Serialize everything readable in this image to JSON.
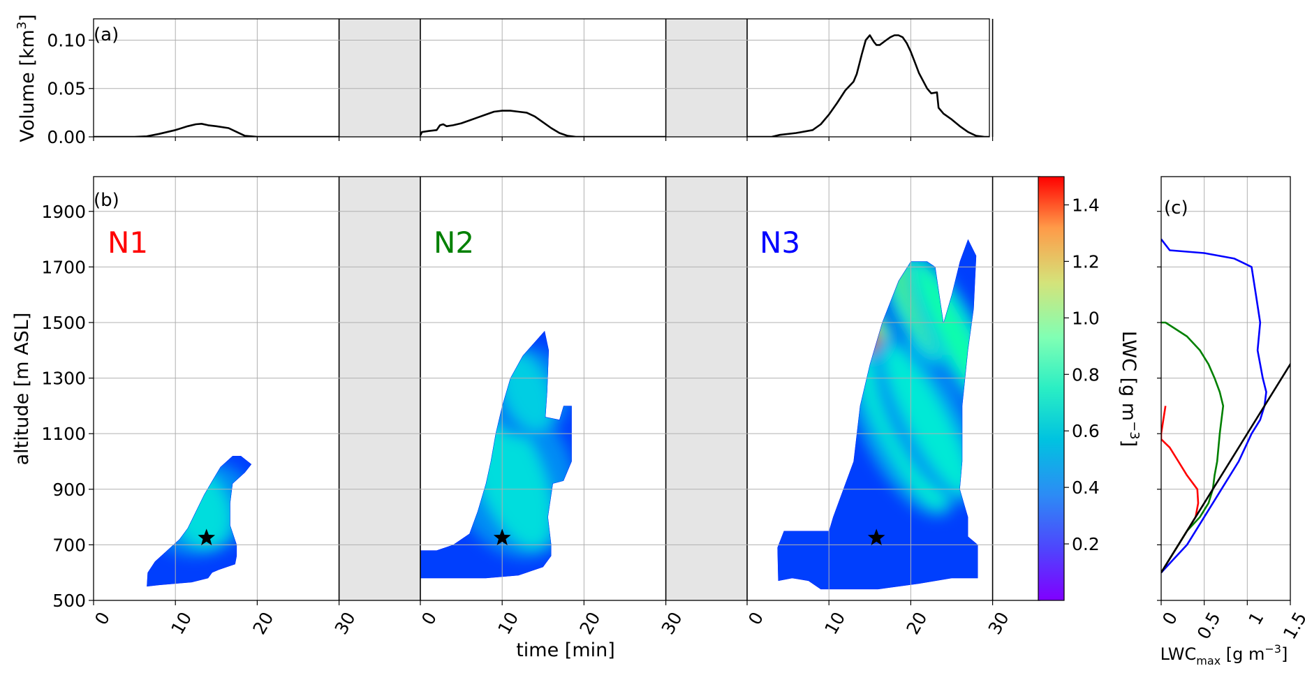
{
  "chart_data": [
    {
      "panel": "(a)",
      "type": "line",
      "ylabel_main": "Volume [km",
      "ylabel_sup": "3",
      "ylabel_end": "]",
      "ylim": [
        0,
        0.122
      ],
      "yticks": [
        "0.00",
        "0.05",
        "0.10"
      ],
      "grid": true,
      "segments": [
        {
          "x": [
            0,
            5,
            6.5,
            8,
            10,
            11.5,
            12.5,
            13.2,
            14,
            15,
            16.5,
            17.5,
            18.5,
            20,
            25,
            30
          ],
          "y": [
            0,
            0,
            0.0005,
            0.003,
            0.007,
            0.011,
            0.013,
            0.0135,
            0.012,
            0.011,
            0.009,
            0.005,
            0.001,
            0,
            0,
            0
          ]
        },
        {
          "x": [
            0,
            0.2,
            1,
            2,
            2.4,
            2.8,
            3.2,
            4,
            5,
            6,
            7,
            8,
            9,
            10,
            11,
            12,
            13,
            14,
            15,
            16,
            17,
            18,
            19,
            20,
            30
          ],
          "y": [
            0.0015,
            0.005,
            0.006,
            0.007,
            0.012,
            0.013,
            0.011,
            0.012,
            0.014,
            0.017,
            0.02,
            0.023,
            0.026,
            0.027,
            0.027,
            0.026,
            0.025,
            0.021,
            0.015,
            0.009,
            0.004,
            0.001,
            0,
            0,
            0
          ]
        },
        {
          "x": [
            0,
            3,
            4,
            6,
            8,
            9,
            10,
            11,
            12,
            13,
            13.4,
            13.7,
            14,
            14.5,
            15,
            15.5,
            15.8,
            16.2,
            17,
            17.5,
            18,
            18.5,
            19,
            19.5,
            20,
            20.5,
            21,
            22,
            22.5,
            23.2,
            23.4,
            24,
            25,
            26,
            27,
            28,
            29,
            30
          ],
          "y": [
            0,
            0,
            0.002,
            0.004,
            0.007,
            0.013,
            0.023,
            0.035,
            0.048,
            0.057,
            0.065,
            0.075,
            0.085,
            0.1,
            0.105,
            0.098,
            0.095,
            0.095,
            0.1,
            0.103,
            0.105,
            0.105,
            0.103,
            0.097,
            0.088,
            0.077,
            0.066,
            0.05,
            0.045,
            0.046,
            0.03,
            0.024,
            0.018,
            0.011,
            0.005,
            0.001,
            0,
            0
          ]
        }
      ]
    },
    {
      "panel": "(b)",
      "type": "heatmap",
      "xlabel": "time [min]",
      "ylabel": "altitude [m ASL]",
      "xticks": [
        "0",
        "10",
        "20",
        "30"
      ],
      "yticks": [
        "500",
        "700",
        "900",
        "1100",
        "1300",
        "1500",
        "1700",
        "1900"
      ],
      "ylim": [
        500,
        2025
      ],
      "grid": true,
      "colorbar": {
        "label_main": "LWC [g m",
        "label_sup": "−3",
        "label_end": "]",
        "ticks": [
          "0.2",
          "0.4",
          "0.6",
          "0.8",
          "1.0",
          "1.2",
          "1.4"
        ],
        "tick_values": [
          0.2,
          0.4,
          0.6,
          0.8,
          1.0,
          1.2,
          1.4
        ],
        "range": [
          0,
          1.5
        ]
      },
      "cells": [
        {
          "name": "N1",
          "color": "#ff0000",
          "star": [
            13.8,
            725
          ],
          "outline": [
            [
              6.5,
              550
            ],
            [
              6.6,
              600
            ],
            [
              7.5,
              640
            ],
            [
              9,
              680
            ],
            [
              10.5,
              720
            ],
            [
              11.5,
              760
            ],
            [
              12.5,
              820
            ],
            [
              13.5,
              880
            ],
            [
              14.5,
              930
            ],
            [
              15.5,
              980
            ],
            [
              17,
              1020
            ],
            [
              18,
              1020
            ],
            [
              19.3,
              990
            ],
            [
              18.5,
              960
            ],
            [
              17,
              920
            ],
            [
              16.7,
              850
            ],
            [
              16.7,
              770
            ],
            [
              17.5,
              700
            ],
            [
              17.5,
              660
            ],
            [
              17.3,
              630
            ],
            [
              16.3,
              620
            ],
            [
              15.3,
              610
            ],
            [
              14.5,
              600
            ],
            [
              14,
              580
            ],
            [
              12,
              565
            ],
            [
              10,
              560
            ],
            [
              8,
              555
            ]
          ],
          "cores": [
            {
              "t": 13,
              "z": 830,
              "rt": 2.2,
              "rz": 150,
              "c": 0.5
            }
          ]
        },
        {
          "name": "N2",
          "color": "#008000",
          "star": [
            10,
            725
          ],
          "outline": [
            [
              0,
              580
            ],
            [
              0,
              680
            ],
            [
              2,
              680
            ],
            [
              4,
              700
            ],
            [
              6,
              740
            ],
            [
              7,
              820
            ],
            [
              8,
              920
            ],
            [
              8.6,
              1000
            ],
            [
              9.2,
              1100
            ],
            [
              10,
              1200
            ],
            [
              11,
              1300
            ],
            [
              12.5,
              1380
            ],
            [
              14,
              1430
            ],
            [
              15.2,
              1470
            ],
            [
              15.7,
              1400
            ],
            [
              15.5,
              1250
            ],
            [
              15.3,
              1160
            ],
            [
              17,
              1150
            ],
            [
              17.5,
              1200
            ],
            [
              18.5,
              1200
            ],
            [
              18.5,
              1000
            ],
            [
              17.5,
              930
            ],
            [
              16.2,
              920
            ],
            [
              15.6,
              800
            ],
            [
              16,
              700
            ],
            [
              16,
              660
            ],
            [
              15,
              620
            ],
            [
              13,
              600
            ],
            [
              12,
              590
            ],
            [
              8,
              580
            ],
            [
              4,
              580
            ]
          ],
          "cores": [
            {
              "t": 11,
              "z": 950,
              "rt": 2.5,
              "rz": 280,
              "c": 0.5
            },
            {
              "t": 13,
              "z": 1250,
              "rt": 1.8,
              "rz": 150,
              "c": 0.45
            }
          ]
        },
        {
          "name": "N3",
          "color": "#0000ff",
          "star": [
            15.8,
            725
          ],
          "outline": [
            [
              3.8,
              570
            ],
            [
              3.7,
              690
            ],
            [
              4.5,
              750
            ],
            [
              10,
              750
            ],
            [
              10.5,
              800
            ],
            [
              11.5,
              880
            ],
            [
              13,
              1000
            ],
            [
              13.8,
              1200
            ],
            [
              15,
              1350
            ],
            [
              16.5,
              1500
            ],
            [
              18.5,
              1650
            ],
            [
              20,
              1720
            ],
            [
              22,
              1720
            ],
            [
              23,
              1700
            ],
            [
              23.5,
              1600
            ],
            [
              24,
              1500
            ],
            [
              25,
              1600
            ],
            [
              26,
              1720
            ],
            [
              27,
              1800
            ],
            [
              28,
              1740
            ],
            [
              27.7,
              1550
            ],
            [
              27,
              1400
            ],
            [
              26.3,
              1200
            ],
            [
              26.3,
              1000
            ],
            [
              26,
              900
            ],
            [
              27,
              800
            ],
            [
              27,
              730
            ],
            [
              28.2,
              700
            ],
            [
              28.2,
              580
            ],
            [
              25,
              580
            ],
            [
              21,
              560
            ],
            [
              16,
              540
            ],
            [
              12,
              540
            ],
            [
              9,
              540
            ],
            [
              7.5,
              570
            ],
            [
              5.5,
              580
            ]
          ],
          "cores": [
            {
              "t": 17.5,
              "z": 1300,
              "rt": 1.0,
              "rz": 430,
              "c": 1.3
            },
            {
              "t": 21,
              "z": 1550,
              "rt": 1.0,
              "rz": 200,
              "c": 0.95
            },
            {
              "t": 25.5,
              "z": 1450,
              "rt": 1.0,
              "rz": 300,
              "c": 0.8
            },
            {
              "t": 19,
              "z": 1100,
              "rt": 1.5,
              "rz": 300,
              "c": 0.6
            },
            {
              "t": 22,
              "z": 1150,
              "rt": 1.5,
              "rz": 300,
              "c": 0.55
            }
          ]
        }
      ]
    },
    {
      "panel": "(c)",
      "type": "line",
      "xlabel_main": "LWC",
      "xlabel_sub": "max",
      "xlabel_end": " [g m",
      "xlabel_sup": "−3",
      "xlabel_close": "]",
      "xticks": [
        "0",
        "0.5",
        "1",
        "1.5"
      ],
      "tick_values": [
        0,
        0.5,
        1,
        1.5
      ],
      "xlim": [
        0,
        1.5
      ],
      "grid": true,
      "series": [
        {
          "color": "#ff0000",
          "x": [
            0,
            0.1,
            0.2,
            0.3,
            0.4,
            0.43,
            0.42,
            0.3,
            0.2,
            0.1,
            0,
            0,
            0.05
          ],
          "y": [
            600,
            650,
            700,
            750,
            800,
            850,
            900,
            950,
            1000,
            1050,
            1080,
            1100,
            1200
          ]
        },
        {
          "color": "#008000",
          "x": [
            0,
            0.1,
            0.2,
            0.3,
            0.45,
            0.55,
            0.6,
            0.62,
            0.65,
            0.68,
            0.72,
            0.68,
            0.62,
            0.55,
            0.45,
            0.3,
            0.15,
            0.05,
            0
          ],
          "y": [
            600,
            650,
            700,
            750,
            800,
            850,
            900,
            950,
            1000,
            1100,
            1200,
            1250,
            1300,
            1350,
            1400,
            1450,
            1480,
            1500,
            1500
          ]
        },
        {
          "color": "#0000ff",
          "x": [
            0,
            0.15,
            0.3,
            0.5,
            0.7,
            0.9,
            1.05,
            1.15,
            1.2,
            1.22,
            1.18,
            1.12,
            1.15,
            1.1,
            1.05,
            0.85,
            0.5,
            0.1,
            0
          ],
          "y": [
            600,
            650,
            700,
            800,
            900,
            1000,
            1100,
            1150,
            1200,
            1250,
            1300,
            1400,
            1500,
            1600,
            1700,
            1730,
            1750,
            1760,
            1800
          ]
        },
        {
          "color": "#000000",
          "x": [
            0,
            1.6
          ],
          "y": [
            600,
            1400
          ]
        }
      ]
    }
  ],
  "page": {
    "panel_a_label": "(a)",
    "panel_b_label": "(b)",
    "panel_c_label": "(c)",
    "n1_label": "N1",
    "n2_label": "N2",
    "n3_label": "N3",
    "colors": {
      "gap_fill": "#e5e5e5",
      "grid": "#b0b0b0",
      "n1": "#ff0000",
      "n2": "#008000",
      "n3": "#0000ff"
    }
  }
}
